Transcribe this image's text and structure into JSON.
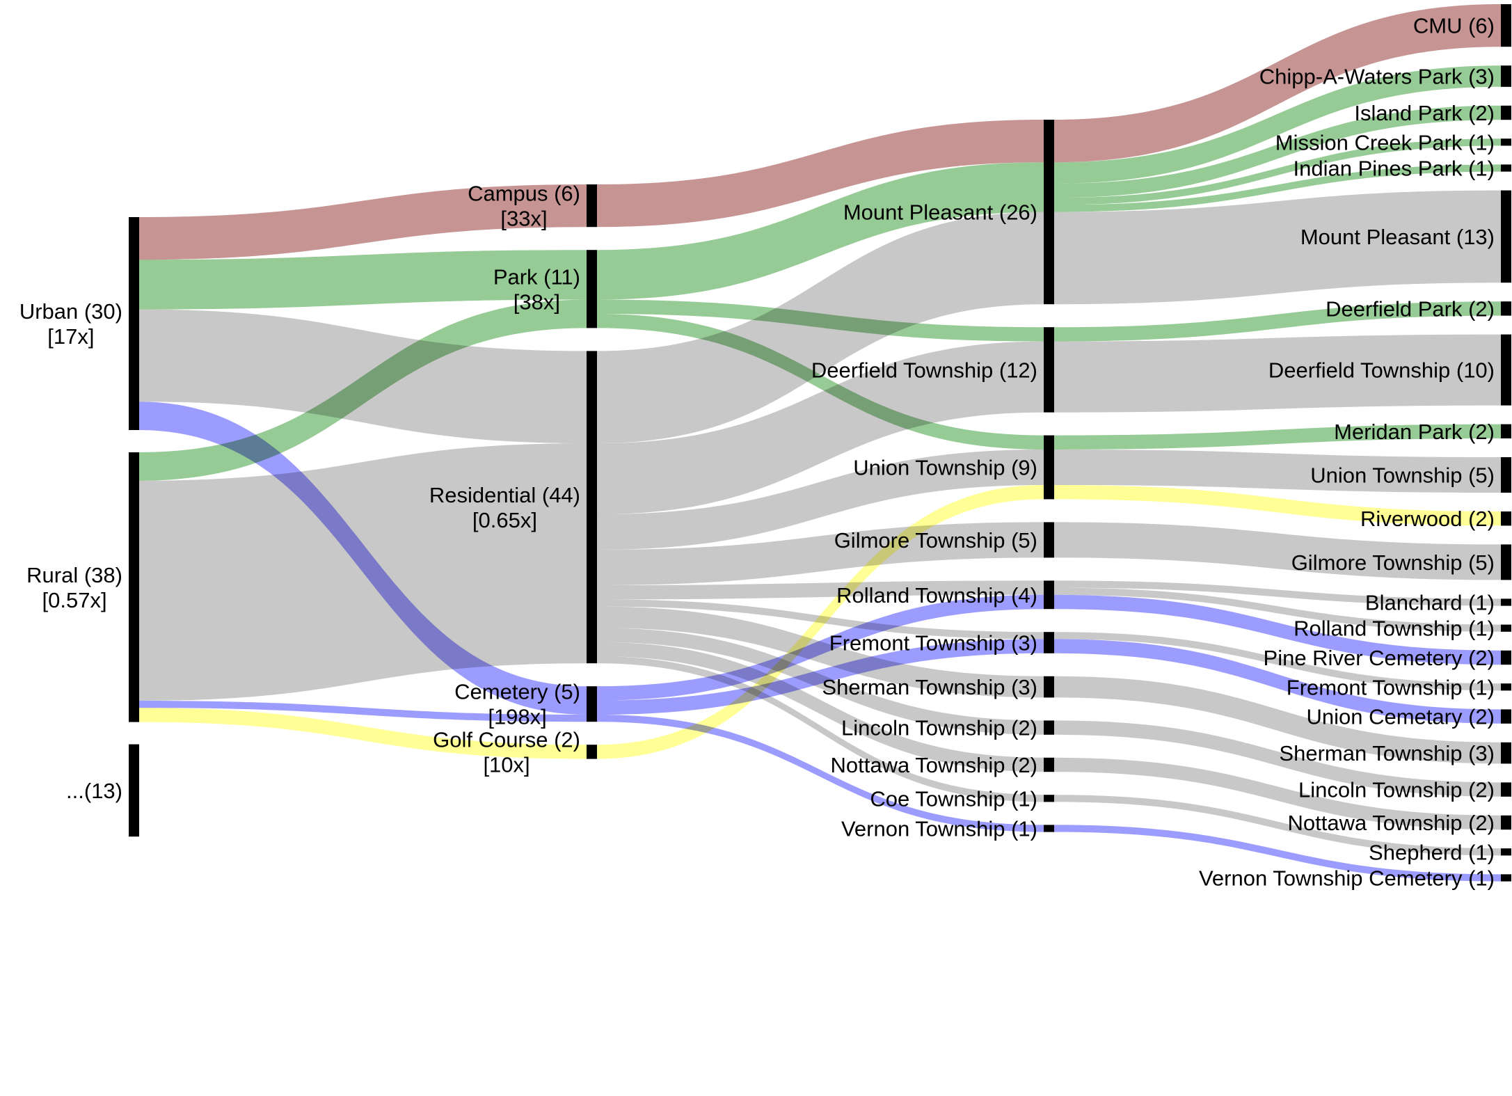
{
  "chart_data": {
    "type": "sankey",
    "columns": [
      [
        {
          "id": "urban",
          "label": "Urban (30)",
          "sub": "[17x]",
          "value": 30
        },
        {
          "id": "rural",
          "label": "Rural (38)",
          "sub": "[0.57x]",
          "value": 38
        },
        {
          "id": "more",
          "label": "...(13)",
          "sub": "",
          "value": 13
        }
      ],
      [
        {
          "id": "campus",
          "label": "Campus (6)",
          "sub": "[33x]",
          "value": 6
        },
        {
          "id": "park",
          "label": "Park (11)",
          "sub": "[38x]",
          "value": 11
        },
        {
          "id": "residential",
          "label": "Residential (44)",
          "sub": "[0.65x]",
          "value": 44
        },
        {
          "id": "cemetery",
          "label": "Cemetery (5)",
          "sub": "[198x]",
          "value": 5
        },
        {
          "id": "golf",
          "label": "Golf Course (2)",
          "sub": "[10x]",
          "value": 2
        }
      ],
      [
        {
          "id": "mtp",
          "label": "Mount Pleasant (26)",
          "value": 26
        },
        {
          "id": "deer",
          "label": "Deerfield Township (12)",
          "value": 12
        },
        {
          "id": "union",
          "label": "Union Township (9)",
          "value": 9
        },
        {
          "id": "gilm",
          "label": "Gilmore Township (5)",
          "value": 5
        },
        {
          "id": "roll",
          "label": "Rolland Township (4)",
          "value": 4
        },
        {
          "id": "frem",
          "label": "Fremont Township (3)",
          "value": 3
        },
        {
          "id": "sher",
          "label": "Sherman Township (3)",
          "value": 3
        },
        {
          "id": "linc",
          "label": "Lincoln Township (2)",
          "value": 2
        },
        {
          "id": "nott",
          "label": "Nottawa Township (2)",
          "value": 2
        },
        {
          "id": "coe",
          "label": "Coe Township (1)",
          "value": 1
        },
        {
          "id": "vern",
          "label": "Vernon Township (1)",
          "value": 1
        }
      ],
      [
        {
          "id": "cmu",
          "label": "CMU (6)",
          "value": 6
        },
        {
          "id": "chipp",
          "label": "Chipp-A-Waters Park (3)",
          "value": 3
        },
        {
          "id": "island",
          "label": "Island Park (2)",
          "value": 2
        },
        {
          "id": "mission",
          "label": "Mission Creek Park (1)",
          "value": 1
        },
        {
          "id": "indian",
          "label": "Indian Pines Park (1)",
          "value": 1
        },
        {
          "id": "mtp4",
          "label": "Mount Pleasant (13)",
          "value": 13
        },
        {
          "id": "deerpark",
          "label": "Deerfield Park (2)",
          "value": 2
        },
        {
          "id": "deer4",
          "label": "Deerfield Township (10)",
          "value": 10
        },
        {
          "id": "meridan",
          "label": "Meridan Park (2)",
          "value": 2
        },
        {
          "id": "union4",
          "label": "Union Township (5)",
          "value": 5
        },
        {
          "id": "river",
          "label": "Riverwood (2)",
          "value": 2
        },
        {
          "id": "gilm4",
          "label": "Gilmore Township (5)",
          "value": 5
        },
        {
          "id": "blanch",
          "label": "Blanchard (1)",
          "value": 1
        },
        {
          "id": "roll4",
          "label": "Rolland Township (1)",
          "value": 1
        },
        {
          "id": "pine",
          "label": "Pine River Cemetery (2)",
          "value": 2
        },
        {
          "id": "frem4",
          "label": "Fremont Township (1)",
          "value": 1
        },
        {
          "id": "unioncem",
          "label": "Union Cemetary (2)",
          "value": 2
        },
        {
          "id": "sher4",
          "label": "Sherman Township (3)",
          "value": 3
        },
        {
          "id": "linc4",
          "label": "Lincoln Township (2)",
          "value": 2
        },
        {
          "id": "nott4",
          "label": "Nottawa Township (2)",
          "value": 2
        },
        {
          "id": "shep",
          "label": "Shepherd (1)",
          "value": 1
        },
        {
          "id": "verncem",
          "label": "Vernon Township Cemetery (1)",
          "value": 1
        }
      ]
    ],
    "links": [
      {
        "source": "urban",
        "target": "campus",
        "value": 6,
        "category": "campus"
      },
      {
        "source": "urban",
        "target": "park",
        "value": 7,
        "category": "park"
      },
      {
        "source": "urban",
        "target": "residential",
        "value": 13,
        "category": "residential"
      },
      {
        "source": "urban",
        "target": "cemetery",
        "value": 4,
        "category": "cemetery"
      },
      {
        "source": "rural",
        "target": "park",
        "value": 4,
        "category": "park"
      },
      {
        "source": "rural",
        "target": "residential",
        "value": 31,
        "category": "residential"
      },
      {
        "source": "rural",
        "target": "cemetery",
        "value": 1,
        "category": "cemetery"
      },
      {
        "source": "rural",
        "target": "golf",
        "value": 2,
        "category": "golf"
      },
      {
        "source": "campus",
        "target": "mtp",
        "value": 6,
        "category": "campus"
      },
      {
        "source": "park",
        "target": "mtp",
        "value": 7,
        "category": "park"
      },
      {
        "source": "park",
        "target": "deer",
        "value": 2,
        "category": "park"
      },
      {
        "source": "park",
        "target": "union",
        "value": 2,
        "category": "park"
      },
      {
        "source": "residential",
        "target": "mtp",
        "value": 13,
        "category": "residential"
      },
      {
        "source": "residential",
        "target": "deer",
        "value": 10,
        "category": "residential"
      },
      {
        "source": "residential",
        "target": "union",
        "value": 5,
        "category": "residential"
      },
      {
        "source": "residential",
        "target": "gilm",
        "value": 5,
        "category": "residential"
      },
      {
        "source": "residential",
        "target": "roll",
        "value": 2,
        "category": "residential"
      },
      {
        "source": "residential",
        "target": "frem",
        "value": 1,
        "category": "residential"
      },
      {
        "source": "residential",
        "target": "sher",
        "value": 3,
        "category": "residential"
      },
      {
        "source": "residential",
        "target": "linc",
        "value": 2,
        "category": "residential"
      },
      {
        "source": "residential",
        "target": "nott",
        "value": 2,
        "category": "residential"
      },
      {
        "source": "residential",
        "target": "coe",
        "value": 1,
        "category": "residential"
      },
      {
        "source": "cemetery",
        "target": "roll",
        "value": 2,
        "category": "cemetery"
      },
      {
        "source": "cemetery",
        "target": "frem",
        "value": 2,
        "category": "cemetery"
      },
      {
        "source": "cemetery",
        "target": "vern",
        "value": 1,
        "category": "cemetery"
      },
      {
        "source": "golf",
        "target": "union",
        "value": 2,
        "category": "golf"
      },
      {
        "source": "mtp",
        "target": "cmu",
        "value": 6,
        "category": "campus"
      },
      {
        "source": "mtp",
        "target": "chipp",
        "value": 3,
        "category": "park"
      },
      {
        "source": "mtp",
        "target": "island",
        "value": 2,
        "category": "park"
      },
      {
        "source": "mtp",
        "target": "mission",
        "value": 1,
        "category": "park"
      },
      {
        "source": "mtp",
        "target": "indian",
        "value": 1,
        "category": "park"
      },
      {
        "source": "mtp",
        "target": "mtp4",
        "value": 13,
        "category": "residential"
      },
      {
        "source": "deer",
        "target": "deerpark",
        "value": 2,
        "category": "park"
      },
      {
        "source": "deer",
        "target": "deer4",
        "value": 10,
        "category": "residential"
      },
      {
        "source": "union",
        "target": "meridan",
        "value": 2,
        "category": "park"
      },
      {
        "source": "union",
        "target": "union4",
        "value": 5,
        "category": "residential"
      },
      {
        "source": "union",
        "target": "river",
        "value": 2,
        "category": "golf"
      },
      {
        "source": "gilm",
        "target": "gilm4",
        "value": 5,
        "category": "residential"
      },
      {
        "source": "roll",
        "target": "blanch",
        "value": 1,
        "category": "residential"
      },
      {
        "source": "roll",
        "target": "roll4",
        "value": 1,
        "category": "residential"
      },
      {
        "source": "roll",
        "target": "pine",
        "value": 2,
        "category": "cemetery"
      },
      {
        "source": "frem",
        "target": "frem4",
        "value": 1,
        "category": "residential"
      },
      {
        "source": "frem",
        "target": "unioncem",
        "value": 2,
        "category": "cemetery"
      },
      {
        "source": "sher",
        "target": "sher4",
        "value": 3,
        "category": "residential"
      },
      {
        "source": "linc",
        "target": "linc4",
        "value": 2,
        "category": "residential"
      },
      {
        "source": "nott",
        "target": "nott4",
        "value": 2,
        "category": "residential"
      },
      {
        "source": "coe",
        "target": "shep",
        "value": 1,
        "category": "residential"
      },
      {
        "source": "vern",
        "target": "verncem",
        "value": 1,
        "category": "cemetery"
      }
    ],
    "colors": {
      "campus": "#c79494",
      "park": "#96cb96",
      "residential": "#c8c8c8",
      "cemetery": "#9c9cff",
      "golf": "#ffff96",
      "node": "#000000"
    }
  }
}
